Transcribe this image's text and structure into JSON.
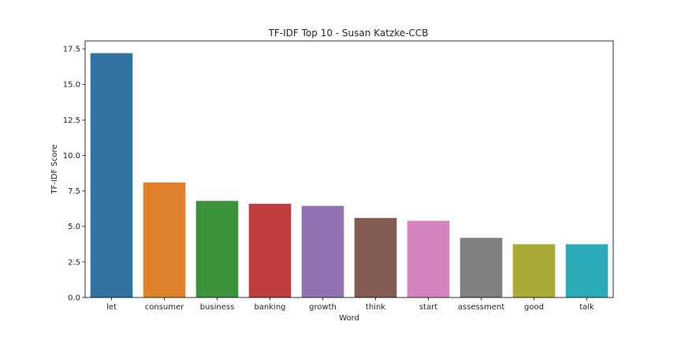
{
  "chart_data": {
    "type": "bar",
    "title": "TF-IDF Top 10 - Susan Katzke-CCB",
    "xlabel": "Word",
    "ylabel": "TF-IDF Score",
    "categories": [
      "let",
      "consumer",
      "business",
      "banking",
      "growth",
      "think",
      "start",
      "assessment",
      "good",
      "talk"
    ],
    "values": [
      17.2,
      8.1,
      6.8,
      6.6,
      6.45,
      5.6,
      5.4,
      4.2,
      3.75,
      3.75
    ],
    "colors": [
      "#3274a1",
      "#e1812c",
      "#3a923a",
      "#c03d3e",
      "#9372b2",
      "#845b53",
      "#d684bd",
      "#7f7f7f",
      "#a9aa35",
      "#2eabb8"
    ],
    "ylim": [
      0,
      18.06
    ],
    "yticks": [
      0.0,
      2.5,
      5.0,
      7.5,
      10.0,
      12.5,
      15.0,
      17.5
    ],
    "ytick_labels": [
      "0.0",
      "2.5",
      "5.0",
      "7.5",
      "10.0",
      "12.5",
      "15.0",
      "17.5"
    ],
    "grid": false,
    "legend": "none"
  }
}
